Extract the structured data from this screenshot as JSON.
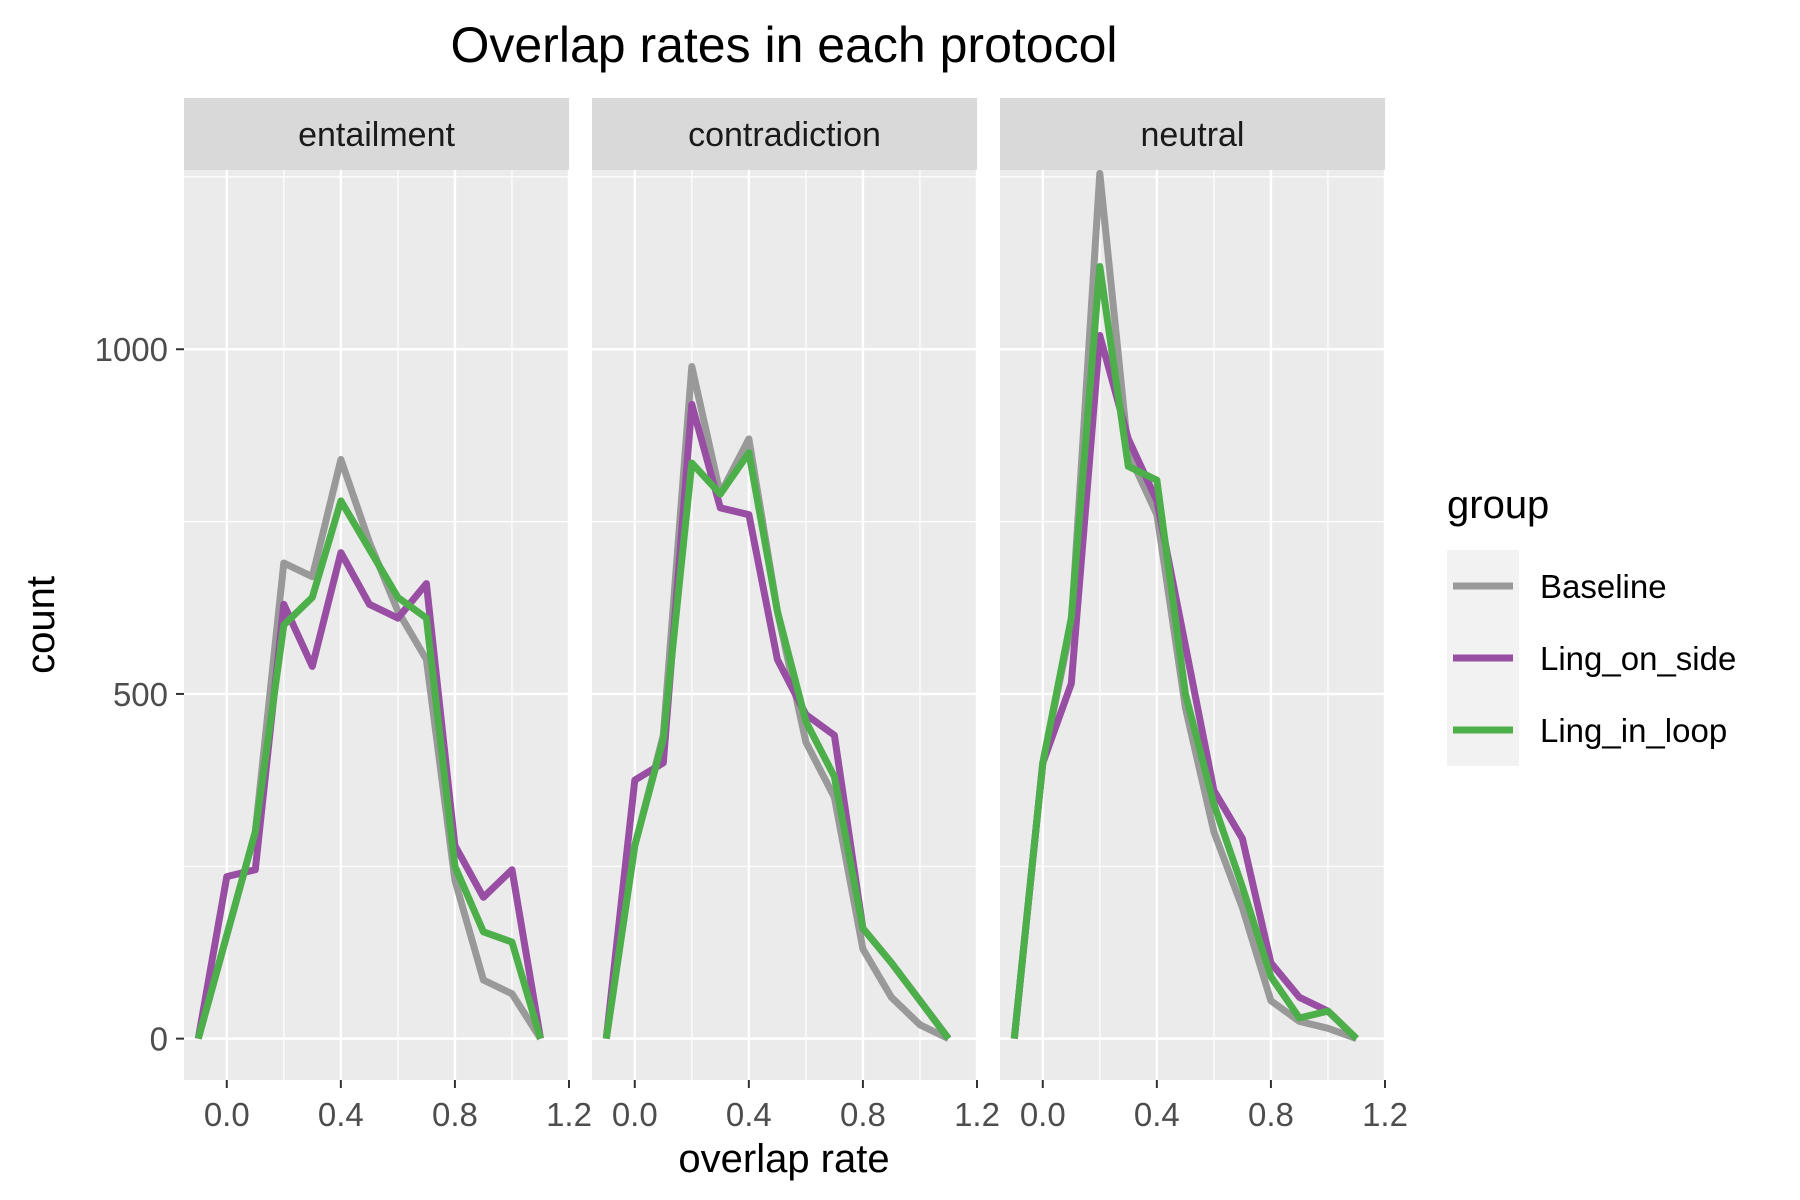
{
  "chart_data": {
    "type": "line",
    "title": "Overlap rates in each protocol",
    "xlabel": "overlap rate",
    "ylabel": "count",
    "xlim": [
      -0.15,
      1.2
    ],
    "ylim": [
      -60,
      1260
    ],
    "x_ticks": [
      0.0,
      0.4,
      0.8,
      1.2
    ],
    "x_tick_labels": [
      "0.0",
      "0.4",
      "0.8",
      "1.2"
    ],
    "y_ticks": [
      0,
      500,
      1000
    ],
    "y_tick_labels": [
      "0",
      "500",
      "1000"
    ],
    "grid": true,
    "legend": {
      "title": "group",
      "position": "right",
      "entries": [
        "Baseline",
        "Ling_on_side",
        "Ling_in_loop"
      ]
    },
    "colors": {
      "Baseline": "#999999",
      "Ling_on_side": "#984EA3",
      "Ling_in_loop": "#4DAF4A",
      "panel_bg": "#EBEBEB",
      "strip_bg": "#D9D9D9"
    },
    "x": [
      -0.1,
      0.0,
      0.1,
      0.2,
      0.3,
      0.4,
      0.5,
      0.6,
      0.7,
      0.8,
      0.9,
      1.0,
      1.1
    ],
    "panels": [
      {
        "name": "entailment",
        "series": [
          {
            "name": "Baseline",
            "values": [
              0,
              150,
              300,
              690,
              670,
              840,
              720,
              620,
              550,
              230,
              85,
              65,
              0
            ]
          },
          {
            "name": "Ling_on_side",
            "values": [
              0,
              235,
              245,
              630,
              540,
              705,
              630,
              610,
              660,
              280,
              205,
              245,
              0
            ]
          },
          {
            "name": "Ling_in_loop",
            "values": [
              0,
              150,
              300,
              600,
              640,
              780,
              710,
              640,
              610,
              250,
              155,
              140,
              0
            ]
          }
        ]
      },
      {
        "name": "contradiction",
        "series": [
          {
            "name": "Baseline",
            "values": [
              0,
              280,
              440,
              975,
              790,
              870,
              620,
              430,
              350,
              130,
              60,
              20,
              0
            ]
          },
          {
            "name": "Ling_on_side",
            "values": [
              0,
              375,
              400,
              920,
              770,
              760,
              550,
              470,
              440,
              160,
              110,
              55,
              0
            ]
          },
          {
            "name": "Ling_in_loop",
            "values": [
              0,
              280,
              435,
              835,
              790,
              850,
              620,
              460,
              380,
              160,
              110,
              55,
              0
            ]
          }
        ]
      },
      {
        "name": "neutral",
        "series": [
          {
            "name": "Baseline",
            "values": [
              0,
              400,
              600,
              1255,
              850,
              760,
              480,
              300,
              190,
              55,
              25,
              15,
              0
            ]
          },
          {
            "name": "Ling_on_side",
            "values": [
              0,
              400,
              515,
              1020,
              870,
              780,
              570,
              360,
              290,
              110,
              60,
              40,
              0
            ]
          },
          {
            "name": "Ling_in_loop",
            "values": [
              0,
              400,
              610,
              1120,
              830,
              810,
              500,
              340,
              220,
              90,
              30,
              40,
              0
            ]
          }
        ]
      }
    ]
  }
}
